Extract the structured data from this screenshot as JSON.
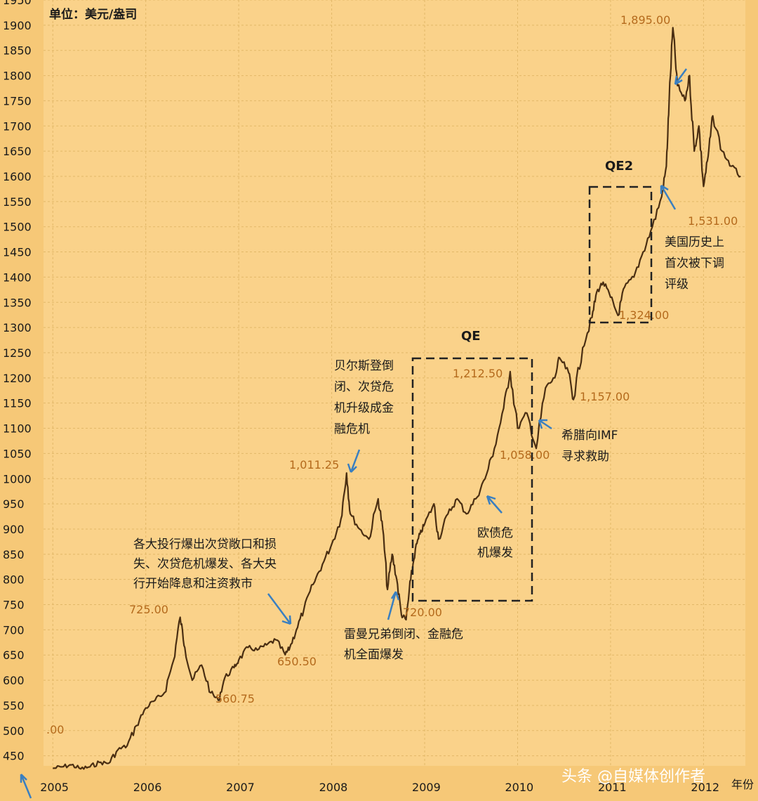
{
  "chart_data": {
    "type": "line",
    "unit_label": "单位：美元/盎司",
    "xlabel": "年份",
    "ylim": [
      430,
      1950
    ],
    "y_ticks": [
      450,
      500,
      550,
      600,
      650,
      700,
      750,
      800,
      850,
      900,
      950,
      1000,
      1050,
      1100,
      1150,
      1200,
      1250,
      1300,
      1350,
      1400,
      1450,
      1500,
      1550,
      1600,
      1650,
      1700,
      1750,
      1800,
      1850,
      1900,
      1950
    ],
    "x_ticks": [
      "2005",
      "2006",
      "2007",
      "2008",
      "2009",
      "2010",
      "2011",
      "2012"
    ],
    "xlim": [
      2004.9,
      2012.45
    ],
    "series": [
      {
        "x": [
          2005.0,
          2005.1,
          2005.2,
          2005.3,
          2005.4,
          2005.5,
          2005.6,
          2005.7,
          2005.8,
          2005.9,
          2006.0,
          2006.1,
          2006.2,
          2006.3,
          2006.37,
          2006.42,
          2006.5,
          2006.6,
          2006.7,
          2006.78,
          2006.85,
          2006.95,
          2007.0,
          2007.1,
          2007.2,
          2007.3,
          2007.4,
          2007.5,
          2007.55,
          2007.62,
          2007.7,
          2007.8,
          2007.9,
          2008.0,
          2008.1,
          2008.16,
          2008.2,
          2008.3,
          2008.4,
          2008.5,
          2008.55,
          2008.6,
          2008.65,
          2008.7,
          2008.75,
          2008.8,
          2008.85,
          2008.9,
          2008.95,
          2009.0,
          2009.1,
          2009.15,
          2009.25,
          2009.35,
          2009.45,
          2009.55,
          2009.65,
          2009.75,
          2009.85,
          2009.92,
          2010.0,
          2010.1,
          2010.2,
          2010.3,
          2010.4,
          2010.45,
          2010.55,
          2010.6,
          2010.7,
          2010.8,
          2010.85,
          2010.92,
          2011.0,
          2011.08,
          2011.15,
          2011.25,
          2011.35,
          2011.45,
          2011.55,
          2011.6,
          2011.63,
          2011.67,
          2011.72,
          2011.8,
          2011.85,
          2011.9,
          2011.95,
          2012.0,
          2012.05,
          2012.1,
          2012.2,
          2012.3,
          2012.4
        ],
        "y": [
          425,
          428,
          432,
          424,
          428,
          437,
          435,
          462,
          470,
          510,
          545,
          560,
          575,
          640,
          725,
          665,
          600,
          630,
          575,
          560,
          605,
          625,
          640,
          665,
          660,
          670,
          680,
          650.5,
          665,
          700,
          740,
          790,
          830,
          870,
          920,
          1011.25,
          930,
          900,
          880,
          960,
          900,
          780,
          850,
          800,
          730,
          720,
          800,
          860,
          890,
          910,
          950,
          880,
          930,
          960,
          930,
          960,
          1000,
          1060,
          1140,
          1212.5,
          1100,
          1130,
          1060,
          1180,
          1200,
          1240,
          1210,
          1157,
          1260,
          1320,
          1370,
          1390,
          1360,
          1324,
          1380,
          1400,
          1450,
          1500,
          1560,
          1620,
          1750,
          1895,
          1780,
          1750,
          1800,
          1650,
          1700,
          1580,
          1640,
          1720,
          1650,
          1620,
          1600
        ]
      }
    ],
    "value_labels": [
      "1,895.00",
      "1,531.00",
      "1,324.00",
      "1,212.50",
      "1,157.00",
      "1,058.00",
      "1,011.25",
      "725.00",
      "720.00",
      "650.50",
      "560.75",
      ".00"
    ],
    "qe_labels": [
      "QE",
      "QE2"
    ],
    "annotations": [
      [
        "贝尔斯登倒",
        "闭、次贷危",
        "机升级成金",
        "融危机"
      ],
      [
        "各大投行爆出次贷敞口和损",
        "失、次贷危机爆发、各大央",
        "行开始降息和注资救市"
      ],
      [
        "雷曼兄弟倒闭、金融危",
        "机全面爆发"
      ],
      [
        "欧债危",
        "机爆发"
      ],
      [
        "希腊向IMF",
        "寻求救助"
      ],
      [
        "美国历史上",
        "首次被下调",
        "评级"
      ]
    ]
  },
  "watermark": "头条 @自媒体创作者"
}
